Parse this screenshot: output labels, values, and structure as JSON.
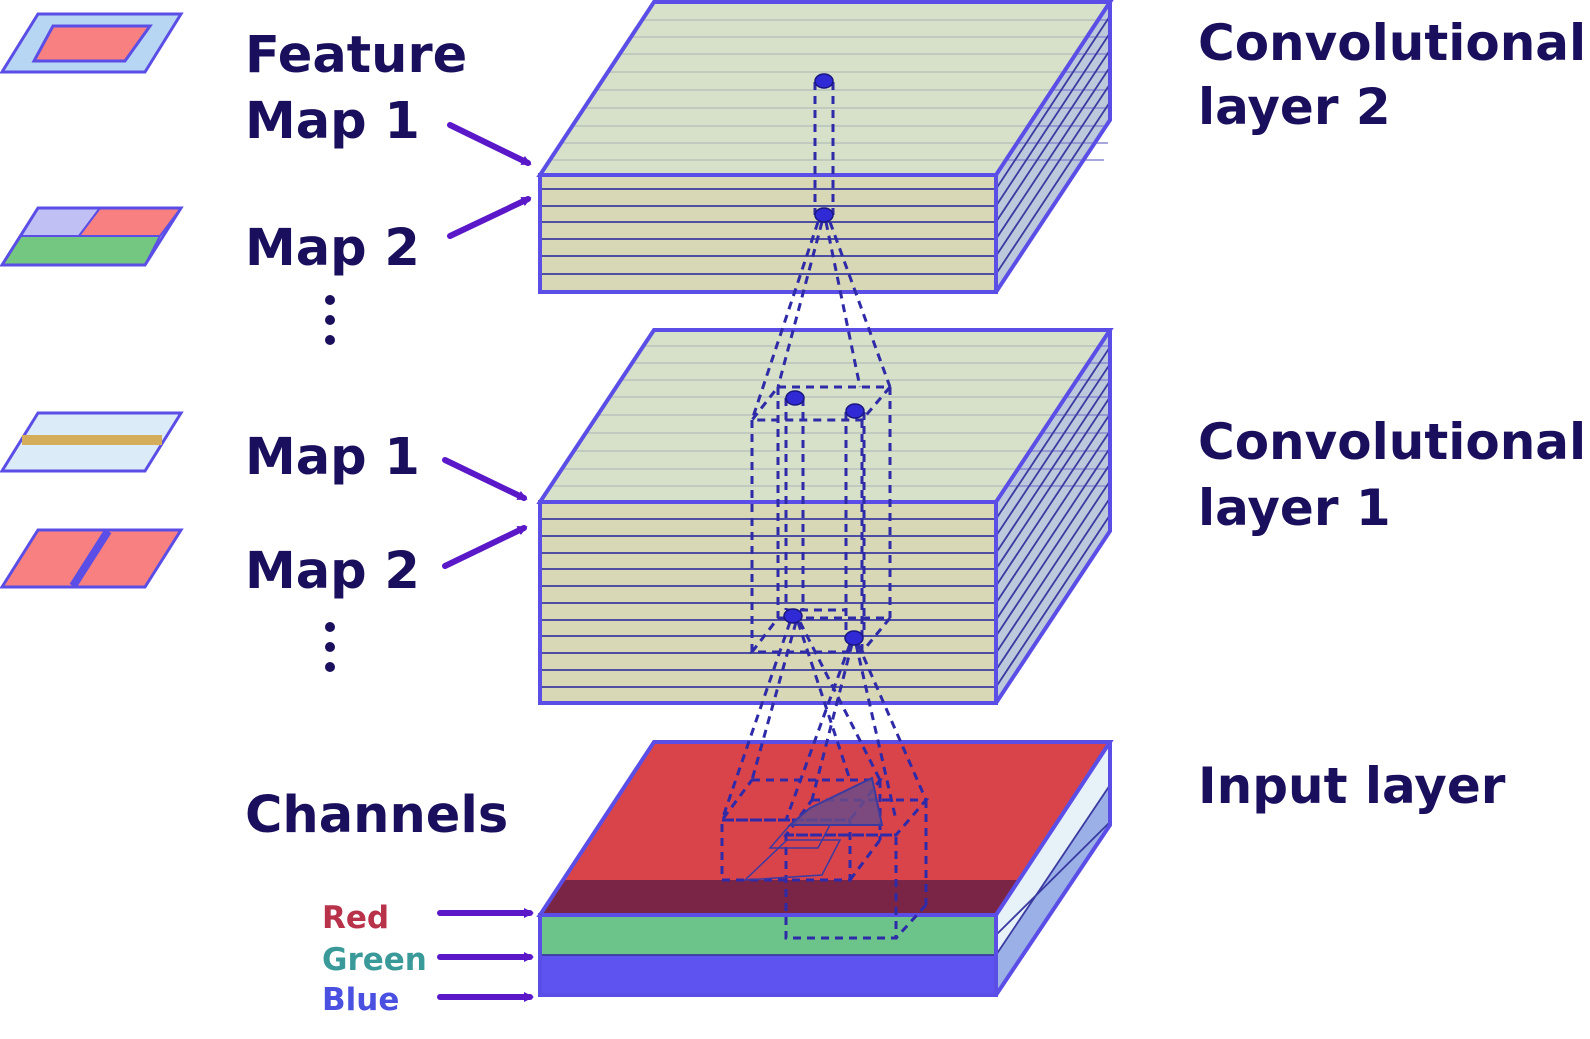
{
  "colors": {
    "text_dark": "#1a0f5c",
    "edge": "#5b4ee6",
    "dashed": "#2e2aa8",
    "node": "#2f2ad6",
    "arrow": "#5a18c9",
    "slab_top": "#cdd8b8",
    "slab_front": "#d8d8b6",
    "slab_side": "#bcc8dc",
    "red_channel": "#d9444b",
    "green_channel": "#6cc48a",
    "blue_channel": "#5e52f0",
    "red_label": "#b8324a",
    "green_label": "#3a9a9a",
    "blue_label": "#4a50e0"
  },
  "left_labels": {
    "feature": "Feature",
    "map1_top": "Map 1",
    "map2_top": "Map 2",
    "map1_mid": "Map 1",
    "map2_mid": "Map 2",
    "channels": "Channels"
  },
  "channel_labels": {
    "red": "Red",
    "green": "Green",
    "blue": "Blue"
  },
  "layer_labels": {
    "conv2_line1": "Convolutional",
    "conv2_line2": "layer 2",
    "conv1_line1": "Convolutional",
    "conv1_line2": "layer 1",
    "input": "Input layer"
  },
  "ellipsis_glyph": "⋮",
  "icons": [
    {
      "name": "feature-map-1-icon",
      "pattern": "inset-red-rectangle"
    },
    {
      "name": "feature-map-2-icon",
      "pattern": "purple-red-over-green"
    },
    {
      "name": "map-1-icon",
      "pattern": "horizontal-yellow-stripe"
    },
    {
      "name": "map-2-icon",
      "pattern": "split-red-halves"
    }
  ]
}
